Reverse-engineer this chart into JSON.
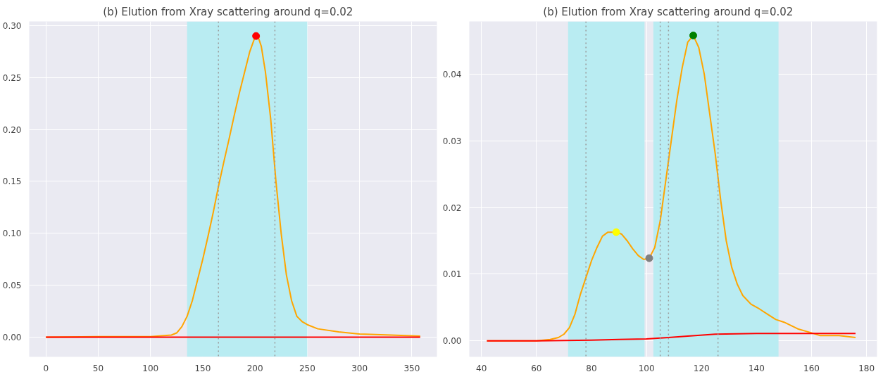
{
  "chart_data": [
    {
      "type": "line",
      "title": "(b)    Elution from Xray scattering around q=0.02",
      "grid": true,
      "marker": "none",
      "line_style": "solid",
      "xlim": [
        -16,
        374
      ],
      "ylim": [
        -0.019,
        0.304
      ],
      "xticks": [
        0,
        50,
        100,
        150,
        200,
        250,
        300,
        350
      ],
      "yticks": [
        {
          "value": 0,
          "label": "0.00"
        },
        {
          "value": 0.05,
          "label": "0.05"
        },
        {
          "value": 0.1,
          "label": "0.10"
        },
        {
          "value": 0.15,
          "label": "0.15"
        },
        {
          "value": 0.2,
          "label": "0.20"
        },
        {
          "value": 0.25,
          "label": "0.25"
        },
        {
          "value": 0.3,
          "label": "0.30"
        }
      ],
      "bands": [
        {
          "axis": "x",
          "from": 135,
          "to": 250,
          "color": "#b9ecf2"
        }
      ],
      "ref_lines": [
        {
          "axis": "x",
          "value": 165,
          "color": "#999999",
          "line_style": "dotted"
        },
        {
          "axis": "x",
          "value": 219,
          "color": "#999999",
          "line_style": "dotted"
        }
      ],
      "series": [
        {
          "color": "#ffa500",
          "x": [
            0,
            50,
            100,
            120,
            125,
            130,
            135,
            140,
            145,
            150,
            155,
            160,
            165,
            170,
            175,
            180,
            185,
            190,
            195,
            200,
            201,
            203,
            206,
            210,
            215,
            220,
            225,
            230,
            235,
            240,
            245,
            250,
            260,
            280,
            300,
            330,
            358
          ],
          "values": [
            0,
            0.0005,
            0.0005,
            0.002,
            0.004,
            0.01,
            0.02,
            0.035,
            0.055,
            0.075,
            0.097,
            0.12,
            0.145,
            0.168,
            0.19,
            0.213,
            0.235,
            0.255,
            0.275,
            0.289,
            0.29,
            0.289,
            0.28,
            0.255,
            0.21,
            0.15,
            0.1,
            0.06,
            0.035,
            0.02,
            0.015,
            0.012,
            0.008,
            0.005,
            0.003,
            0.002,
            0.001
          ]
        },
        {
          "color": "#ff0000",
          "x": [
            0,
            358
          ],
          "values": [
            0,
            0
          ]
        },
        {
          "type": "scatter",
          "marker": "circle",
          "color": "#ff0000",
          "x": [
            201
          ],
          "values": [
            0.29
          ]
        }
      ]
    },
    {
      "type": "line",
      "title": "(b)    Elution from Xray scattering around q=0.02",
      "grid": true,
      "marker": "none",
      "line_style": "solid",
      "xlim": [
        35.6,
        183.8
      ],
      "ylim": [
        -0.0024,
        0.0479
      ],
      "xticks": [
        40,
        60,
        80,
        100,
        120,
        140,
        160,
        180
      ],
      "yticks": [
        {
          "value": 0,
          "label": "0.00"
        },
        {
          "value": 0.01,
          "label": "0.01"
        },
        {
          "value": 0.02,
          "label": "0.02"
        },
        {
          "value": 0.03,
          "label": "0.03"
        },
        {
          "value": 0.04,
          "label": "0.04"
        }
      ],
      "bands": [
        {
          "axis": "x",
          "from": 71.5,
          "to": 99.3,
          "color": "#b9ecf2"
        },
        {
          "axis": "x",
          "from": 102.5,
          "to": 148,
          "color": "#b9ecf2"
        }
      ],
      "ref_lines": [
        {
          "axis": "x",
          "value": 78,
          "color": "#999999",
          "line_style": "dotted"
        },
        {
          "axis": "x",
          "value": 105,
          "color": "#999999",
          "line_style": "dotted"
        },
        {
          "axis": "x",
          "value": 108,
          "color": "#999999",
          "line_style": "dotted"
        },
        {
          "axis": "x",
          "value": 126,
          "color": "#999999",
          "line_style": "dotted"
        }
      ],
      "series": [
        {
          "color": "#ffa500",
          "x": [
            42,
            50,
            60,
            65,
            68,
            70,
            72,
            74,
            76,
            78,
            80,
            82,
            84,
            86,
            88,
            89,
            91,
            93,
            95,
            97,
            99,
            101,
            103,
            105,
            107,
            109,
            111,
            113,
            115,
            117,
            119,
            121,
            123,
            125,
            127,
            129,
            131,
            133,
            135,
            138,
            141,
            144,
            147,
            150,
            155,
            160,
            163,
            167,
            170,
            176
          ],
          "values": [
            0,
            0,
            0,
            0.0002,
            0.0005,
            0.001,
            0.002,
            0.004,
            0.007,
            0.0095,
            0.012,
            0.014,
            0.0157,
            0.0163,
            0.0163,
            0.0163,
            0.016,
            0.015,
            0.0138,
            0.0128,
            0.0122,
            0.0124,
            0.014,
            0.018,
            0.024,
            0.03,
            0.036,
            0.041,
            0.0448,
            0.0458,
            0.044,
            0.04,
            0.034,
            0.028,
            0.021,
            0.015,
            0.011,
            0.0085,
            0.0068,
            0.0055,
            0.0048,
            0.004,
            0.0032,
            0.0028,
            0.0018,
            0.0012,
            0.0008,
            0.0008,
            0.0008,
            0.0005
          ]
        },
        {
          "color": "#ff0000",
          "x": [
            42,
            60,
            80,
            90,
            100,
            108,
            115,
            125,
            140,
            176
          ],
          "values": [
            0,
            0,
            0.0001,
            0.0002,
            0.0003,
            0.0005,
            0.0007,
            0.001,
            0.0011,
            0.0011
          ]
        },
        {
          "type": "scatter",
          "marker": "circle",
          "color": "#ffff00",
          "x": [
            89
          ],
          "values": [
            0.0163
          ]
        },
        {
          "type": "scatter",
          "marker": "circle",
          "color": "#808080",
          "x": [
            101
          ],
          "values": [
            0.0124
          ]
        },
        {
          "type": "scatter",
          "marker": "circle",
          "color": "#008000",
          "x": [
            117
          ],
          "values": [
            0.0458
          ]
        }
      ]
    }
  ]
}
